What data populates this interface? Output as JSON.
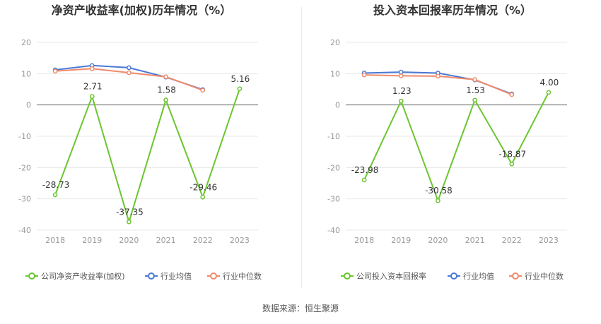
{
  "footer": {
    "source": "数据来源：恒生聚源"
  },
  "colors": {
    "company": "#6bc62f",
    "avg": "#4a78d6",
    "median": "#f08a6a",
    "grid": "#e8e8e8",
    "axis": "#999999",
    "label": "#333333"
  },
  "chart_data": [
    {
      "type": "line",
      "title": "净资产收益率(加权)历年情况（%）",
      "categories": [
        "2018",
        "2019",
        "2020",
        "2021",
        "2022",
        "2023"
      ],
      "ylim": [
        -40,
        20
      ],
      "yticks": [
        "20",
        "10",
        "0",
        "-10",
        "-20",
        "-30",
        "-40"
      ],
      "series": [
        {
          "name": "公司净资产收益率(加权)",
          "values": [
            -28.73,
            2.71,
            -37.35,
            1.58,
            -29.46,
            5.16
          ],
          "labels": [
            "-28.73",
            "2.71",
            "-37.35",
            "1.58",
            "-29.46",
            "5.16"
          ]
        },
        {
          "name": "行业均值",
          "values": [
            11.2,
            12.6,
            11.9,
            8.9,
            4.9,
            null
          ]
        },
        {
          "name": "行业中位数",
          "values": [
            10.8,
            11.6,
            10.3,
            9.0,
            4.7,
            null
          ]
        }
      ],
      "legend": "bottom"
    },
    {
      "type": "line",
      "title": "投入资本回报率历年情况（%）",
      "categories": [
        "2018",
        "2019",
        "2020",
        "2021",
        "2022",
        "2023"
      ],
      "ylim": [
        -40,
        20
      ],
      "yticks": [
        "20",
        "10",
        "0",
        "-10",
        "-20",
        "-30",
        "-40"
      ],
      "series": [
        {
          "name": "公司投入资本回报率",
          "values": [
            -23.98,
            1.23,
            -30.58,
            1.53,
            -18.87,
            4.0
          ],
          "labels": [
            "-23.98",
            "1.23",
            "-30.58",
            "1.53",
            "-18.87",
            "4.00"
          ]
        },
        {
          "name": "行业均值",
          "values": [
            10.2,
            10.5,
            10.2,
            8.0,
            3.5,
            null
          ]
        },
        {
          "name": "行业中位数",
          "values": [
            9.6,
            9.3,
            9.2,
            8.1,
            3.3,
            null
          ]
        }
      ],
      "legend": "bottom"
    }
  ]
}
